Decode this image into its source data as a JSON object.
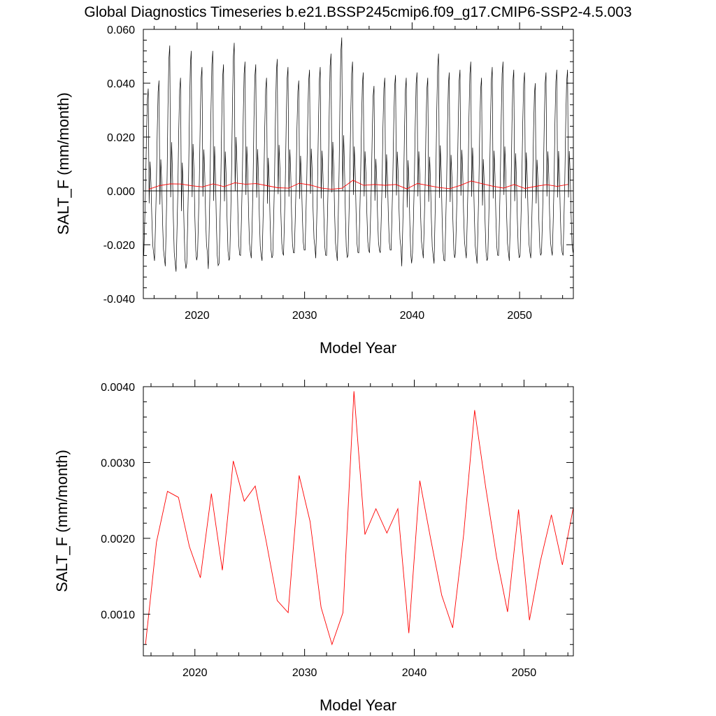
{
  "title": "Global Diagnostics Timeseries b.e21.BSSP245cmip6.f09_g17.CMIP6-SSP2-4.5.003",
  "colors": {
    "monthly": "#000000",
    "annual": "#ff0000",
    "zero_line": "#000000"
  },
  "chart_data": [
    {
      "type": "line",
      "name": "top-panel",
      "xlabel": "Model Year",
      "ylabel": "SALT_F (mm/month)",
      "xlim": [
        2015,
        2055
      ],
      "ylim": [
        -0.04,
        0.06
      ],
      "xticks": [
        2020,
        2030,
        2040,
        2050
      ],
      "xtick_labels": [
        "2020",
        "2030",
        "2040",
        "2050"
      ],
      "yticks": [
        -0.04,
        -0.02,
        0.0,
        0.02,
        0.04,
        0.06
      ],
      "ytick_labels": [
        "-0.040",
        "-0.020",
        "0.000",
        "0.020",
        "0.040",
        "0.060"
      ],
      "reference_line": 0.0,
      "monthly_profile": [
        -0.024,
        -0.012,
        0.002,
        0.022,
        0.036,
        0.04,
        -0.004,
        0.012,
        0.004,
        -0.01,
        -0.02,
        -0.023
      ],
      "series": [
        {
          "style": "monthly",
          "peaks": [
            0.038,
            0.041,
            0.054,
            0.042,
            0.052,
            0.046,
            0.052,
            0.047,
            0.055,
            0.048,
            0.047,
            0.042,
            0.049,
            0.046,
            0.041,
            0.045,
            0.046,
            0.051,
            0.057,
            0.048,
            0.044,
            0.039,
            0.042,
            0.043,
            0.042,
            0.044,
            0.042,
            0.051,
            0.044,
            0.045,
            0.048,
            0.042,
            0.046,
            0.048,
            0.045,
            0.044,
            0.04,
            0.044,
            0.045,
            0.045
          ],
          "troughs": [
            -0.024,
            -0.026,
            -0.028,
            -0.03,
            -0.027,
            -0.024,
            -0.029,
            -0.027,
            -0.025,
            -0.024,
            -0.025,
            -0.026,
            -0.024,
            -0.024,
            -0.023,
            -0.022,
            -0.025,
            -0.024,
            -0.026,
            -0.024,
            -0.023,
            -0.023,
            -0.023,
            -0.022,
            -0.028,
            -0.023,
            -0.025,
            -0.027,
            -0.026,
            -0.023,
            -0.025,
            -0.027,
            -0.025,
            -0.024,
            -0.026,
            -0.024,
            -0.025,
            -0.023,
            -0.024,
            -0.024
          ]
        },
        {
          "style": "annual",
          "x": [
            2015.5,
            2016.5,
            2017.5,
            2018.5,
            2019.5,
            2020.5,
            2021.5,
            2022.5,
            2023.5,
            2024.5,
            2025.5,
            2026.5,
            2027.5,
            2028.5,
            2029.5,
            2030.5,
            2031.5,
            2032.5,
            2033.5,
            2034.5,
            2035.5,
            2036.5,
            2037.5,
            2038.5,
            2039.5,
            2040.5,
            2041.5,
            2042.5,
            2043.5,
            2044.5,
            2045.5,
            2046.5,
            2047.5,
            2048.5,
            2049.5,
            2050.5,
            2051.5,
            2052.5,
            2053.5,
            2054.5
          ],
          "values": [
            0.0006,
            0.00195,
            0.00262,
            0.00254,
            0.00189,
            0.00148,
            0.00259,
            0.00158,
            0.00302,
            0.00249,
            0.00269,
            0.00196,
            0.00118,
            0.00102,
            0.00283,
            0.00222,
            0.00109,
            0.0006,
            0.00102,
            0.00394,
            0.00205,
            0.00239,
            0.00207,
            0.00239,
            0.00075,
            0.00276,
            0.00199,
            0.00125,
            0.00082,
            0.00205,
            0.00369,
            0.00268,
            0.00175,
            0.00103,
            0.00238,
            0.00092,
            0.0017,
            0.00231,
            0.00165,
            0.00241
          ]
        }
      ]
    },
    {
      "type": "line",
      "name": "bottom-panel",
      "xlabel": "Model Year",
      "ylabel": "SALT_F (mm/month)",
      "xlim": [
        2015.3,
        2054.5
      ],
      "ylim": [
        0.00045,
        0.004
      ],
      "xticks": [
        2020,
        2030,
        2040,
        2050
      ],
      "xtick_labels": [
        "2020",
        "2030",
        "2040",
        "2050"
      ],
      "yticks": [
        0.001,
        0.002,
        0.003,
        0.004
      ],
      "ytick_labels": [
        "0.0010",
        "0.0020",
        "0.0030",
        "0.0040"
      ],
      "series": [
        {
          "style": "annual",
          "x": [
            2015.5,
            2016.5,
            2017.5,
            2018.5,
            2019.5,
            2020.5,
            2021.5,
            2022.5,
            2023.5,
            2024.5,
            2025.5,
            2026.5,
            2027.5,
            2028.5,
            2029.5,
            2030.5,
            2031.5,
            2032.5,
            2033.5,
            2034.5,
            2035.5,
            2036.5,
            2037.5,
            2038.5,
            2039.5,
            2040.5,
            2041.5,
            2042.5,
            2043.5,
            2044.5,
            2045.5,
            2046.5,
            2047.5,
            2048.5,
            2049.5,
            2050.5,
            2051.5,
            2052.5,
            2053.5,
            2054.5
          ],
          "values": [
            0.0006,
            0.00195,
            0.00262,
            0.00254,
            0.00189,
            0.00148,
            0.00259,
            0.00158,
            0.00302,
            0.00249,
            0.00269,
            0.00196,
            0.00118,
            0.00102,
            0.00283,
            0.00222,
            0.00109,
            0.0006,
            0.00102,
            0.00394,
            0.00205,
            0.00239,
            0.00207,
            0.00239,
            0.00075,
            0.00276,
            0.00199,
            0.00125,
            0.00082,
            0.00205,
            0.00369,
            0.00268,
            0.00175,
            0.00103,
            0.00238,
            0.00092,
            0.0017,
            0.00231,
            0.00165,
            0.00241
          ]
        }
      ]
    }
  ]
}
